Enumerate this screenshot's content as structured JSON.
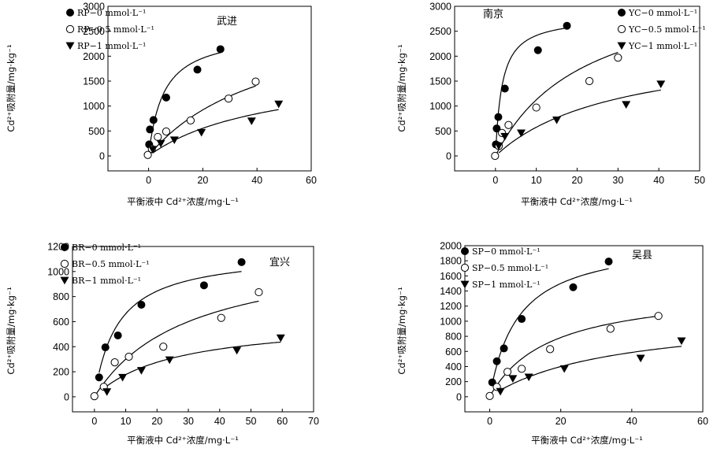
{
  "chart_data": [
    {
      "type": "scatter",
      "panel": "top-left",
      "title": "武进",
      "xlabel": "平衡液中 Cd²⁺浓度/mg·L⁻¹",
      "ylabel": "Cd²⁺吸附量/mg·kg⁻¹",
      "xlim": [
        -15,
        60
      ],
      "ylim": [
        -300,
        3000
      ],
      "xticks": [
        0,
        20,
        40,
        60
      ],
      "yticks": [
        0,
        500,
        1000,
        1500,
        2000,
        2500,
        3000
      ],
      "legend_position": "top-left",
      "series": [
        {
          "name": "RP−0 mmol·L⁻¹",
          "marker": "filled-circle",
          "fit_max": 2500,
          "fit_k": 5.5,
          "x": [
            0.2,
            0.5,
            1.8,
            6.5,
            18,
            26.5
          ],
          "y": [
            230,
            530,
            720,
            1170,
            1730,
            2140
          ]
        },
        {
          "name": "RP−0.5 mmol·L⁻¹",
          "marker": "open-circle",
          "fit_max": 3000,
          "fit_k": 45,
          "x": [
            -0.3,
            1.2,
            3.4,
            6.5,
            15.5,
            29.5,
            39.5
          ],
          "y": [
            20,
            140,
            380,
            490,
            710,
            1150,
            1490
          ]
        },
        {
          "name": "RP−1 mmol·L⁻¹",
          "marker": "filled-triangle",
          "fit_max": 1800,
          "fit_k": 45,
          "x": [
            1.5,
            4.5,
            9.5,
            19.5,
            38,
            48
          ],
          "y": [
            130,
            250,
            320,
            470,
            700,
            1040
          ]
        }
      ]
    },
    {
      "type": "scatter",
      "panel": "top-right",
      "title": "南京",
      "xlabel": "平衡液中 Cd²⁺浓度/mg·L⁻¹",
      "ylabel": "Cd²⁺吸附量/mg·kg⁻¹",
      "xlim": [
        -10,
        50
      ],
      "ylim": [
        -300,
        3000
      ],
      "xticks": [
        0,
        10,
        20,
        30,
        40,
        50
      ],
      "yticks": [
        0,
        500,
        1000,
        1500,
        2000,
        2500,
        3000
      ],
      "legend_position": "top-right",
      "series": [
        {
          "name": "YC−0 mmol·L⁻¹",
          "marker": "filled-circle",
          "fit_max": 2800,
          "fit_k": 1.6,
          "x": [
            0.1,
            0.3,
            0.7,
            2.3,
            10.4,
            17.5
          ],
          "y": [
            230,
            550,
            780,
            1350,
            2120,
            2610
          ]
        },
        {
          "name": "YC−0.5 mmol·L⁻¹",
          "marker": "open-circle",
          "fit_max": 3600,
          "fit_k": 22,
          "x": [
            -0.1,
            0.8,
            1.6,
            3.2,
            10,
            23,
            30
          ],
          "y": [
            0,
            200,
            460,
            620,
            970,
            1500,
            1970
          ]
        },
        {
          "name": "YC−1 mmol·L⁻¹",
          "marker": "filled-triangle",
          "fit_max": 2300,
          "fit_k": 30,
          "x": [
            0.8,
            2.3,
            6.3,
            15,
            32,
            40.5
          ],
          "y": [
            200,
            390,
            460,
            720,
            1030,
            1440
          ]
        }
      ]
    },
    {
      "type": "scatter",
      "panel": "bottom-left",
      "title": "宜兴",
      "xlabel": "平衡液中 Cd²⁺浓度/mg·L⁻¹",
      "ylabel": "Cd²⁺吸附量/mg·kg⁻¹",
      "xlim": [
        -7,
        70
      ],
      "ylim": [
        -120,
        1200
      ],
      "xticks": [
        0,
        10,
        20,
        30,
        40,
        50,
        60,
        70
      ],
      "yticks": [
        0,
        200,
        400,
        600,
        800,
        1000,
        1200
      ],
      "legend_position": "top-left",
      "series": [
        {
          "name": "BR−0 mmol·L⁻¹",
          "marker": "filled-circle",
          "fit_max": 1160,
          "fit_k": 7.5,
          "x": [
            1.5,
            3.5,
            7.5,
            15,
            35,
            47
          ],
          "y": [
            155,
            395,
            490,
            735,
            890,
            1075
          ]
        },
        {
          "name": "BR−0.5 mmol·L⁻¹",
          "marker": "open-circle",
          "fit_max": 1200,
          "fit_k": 30,
          "x": [
            0,
            3,
            6.5,
            11,
            22,
            40.5,
            52.5
          ],
          "y": [
            5,
            80,
            275,
            320,
            400,
            630,
            835
          ]
        },
        {
          "name": "BR−1 mmol·L⁻¹",
          "marker": "filled-triangle",
          "fit_max": 620,
          "fit_k": 25,
          "x": [
            4,
            9,
            15,
            24,
            45.5,
            59.5
          ],
          "y": [
            40,
            155,
            210,
            295,
            370,
            470
          ]
        }
      ]
    },
    {
      "type": "scatter",
      "panel": "bottom-right",
      "title": "吴县",
      "xlabel": "平衡液中 Cd²⁺浓度/mg·L⁻¹",
      "ylabel": "Cd²⁺吸附量/mg·kg⁻¹",
      "xlim": [
        -7,
        60
      ],
      "ylim": [
        -200,
        2000
      ],
      "xticks": [
        0,
        20,
        40,
        60
      ],
      "yticks": [
        0,
        200,
        400,
        600,
        800,
        1000,
        1200,
        1400,
        1600,
        1800,
        2000
      ],
      "legend_position": "top-left",
      "series": [
        {
          "name": "SP−0 mmol·L⁻¹",
          "marker": "filled-circle",
          "fit_max": 2100,
          "fit_k": 8,
          "x": [
            0.7,
            2,
            4,
            9,
            23.5,
            33.5
          ],
          "y": [
            190,
            470,
            640,
            1030,
            1450,
            1790
          ]
        },
        {
          "name": "SP−0.5 mmol·L⁻¹",
          "marker": "open-circle",
          "fit_max": 1450,
          "fit_k": 17,
          "x": [
            0,
            2,
            5,
            9,
            17,
            34,
            47.5
          ],
          "y": [
            10,
            130,
            330,
            370,
            630,
            900,
            1070
          ]
        },
        {
          "name": "SP−1 mmol·L⁻¹",
          "marker": "filled-triangle",
          "fit_max": 1100,
          "fit_k": 35,
          "x": [
            3,
            6.5,
            11,
            21,
            42.5,
            54
          ],
          "y": [
            70,
            240,
            260,
            370,
            510,
            740
          ]
        }
      ]
    }
  ]
}
